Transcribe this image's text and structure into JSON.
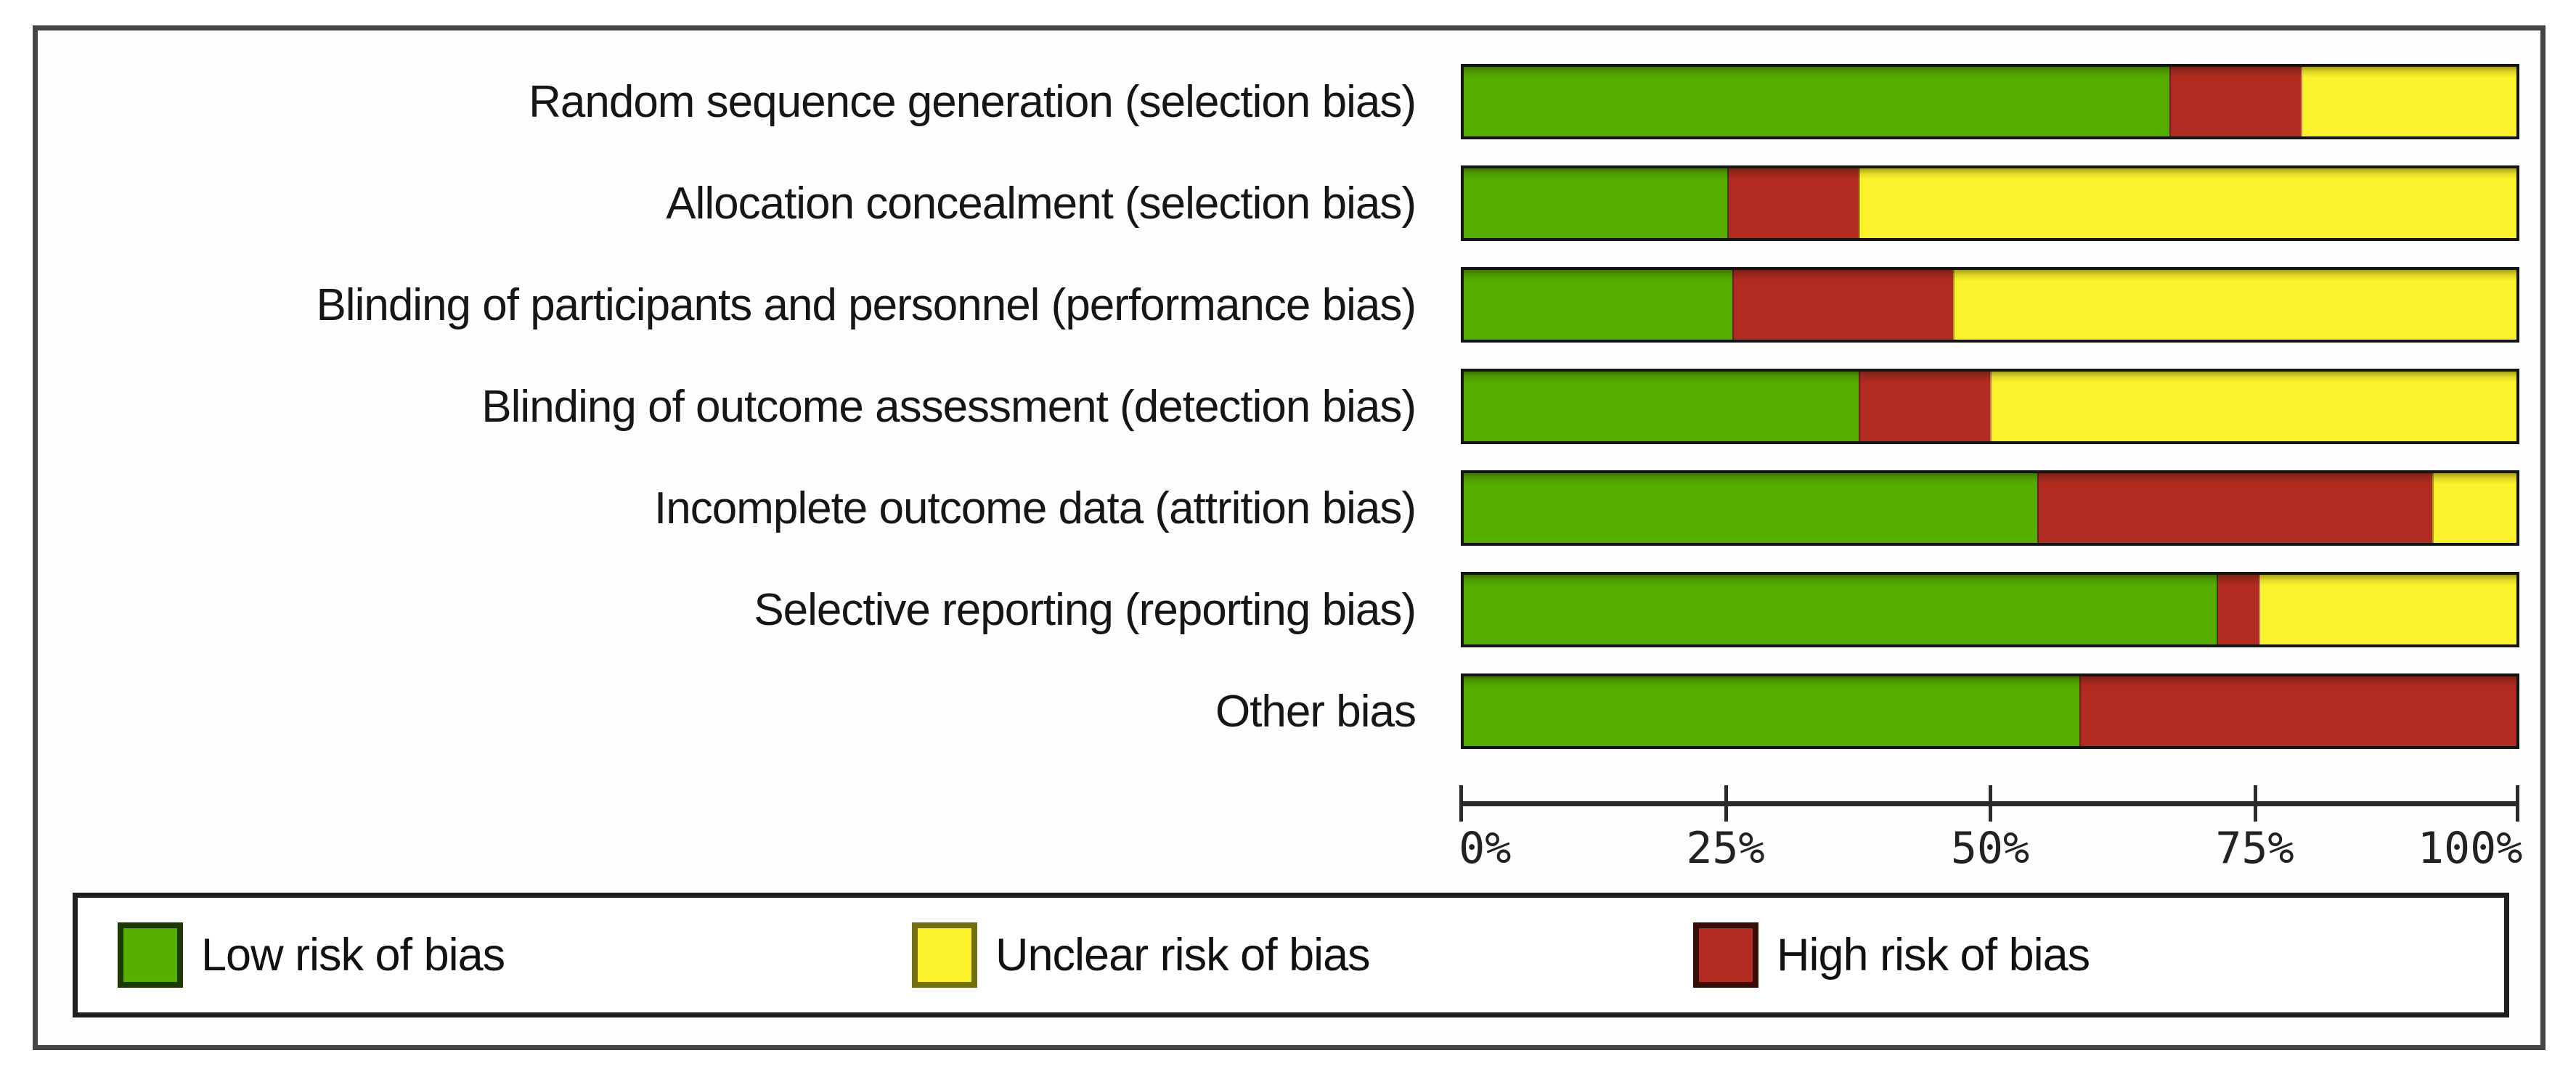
{
  "chart_data": {
    "type": "bar",
    "orientation": "horizontal",
    "stacked": true,
    "title": "",
    "xlabel": "",
    "ylabel": "",
    "xlim": [
      0,
      100
    ],
    "x_unit": "percent",
    "x_ticks": [
      "0%",
      "25%",
      "50%",
      "75%",
      "100%"
    ],
    "grid": false,
    "legend_position": "bottom",
    "categories": [
      "Random sequence generation (selection bias)",
      "Allocation concealment (selection bias)",
      "Blinding of participants and personnel (performance bias)",
      "Blinding of outcome assessment (detection bias)",
      "Incomplete outcome data (attrition bias)",
      "Selective reporting (reporting bias)",
      "Other bias"
    ],
    "series": [
      {
        "name": "Low risk of bias",
        "color": "#55AD00",
        "values": [
          67.0,
          25.0,
          25.5,
          37.5,
          54.5,
          71.5,
          58.5
        ]
      },
      {
        "name": "High risk of bias",
        "color": "#B12B21",
        "values": [
          12.5,
          12.5,
          21.0,
          12.5,
          37.5,
          4.0,
          41.5
        ]
      },
      {
        "name": "Unclear risk of bias",
        "color": "#FBF22B",
        "values": [
          20.5,
          62.5,
          53.5,
          50.0,
          8.0,
          24.5,
          0.0
        ]
      }
    ],
    "segment_draw_order": [
      "Low risk of bias",
      "High risk of bias",
      "Unclear risk of bias"
    ]
  },
  "legend": {
    "items": [
      {
        "label": "Low risk of bias",
        "color": "#55AD00",
        "border_color": "#1C3A00"
      },
      {
        "label": "Unclear risk of bias",
        "color": "#FBF22B",
        "border_color": "#72700E"
      },
      {
        "label": "High risk of bias",
        "color": "#B12B21",
        "border_color": "#3A0E08"
      }
    ]
  },
  "colors": {
    "frame_border": "#454545",
    "legend_border": "#1E1E1E",
    "bar_border": "#141414",
    "axis": "#2B2B2B",
    "text": "#161616",
    "background": "#FFFFFF"
  }
}
